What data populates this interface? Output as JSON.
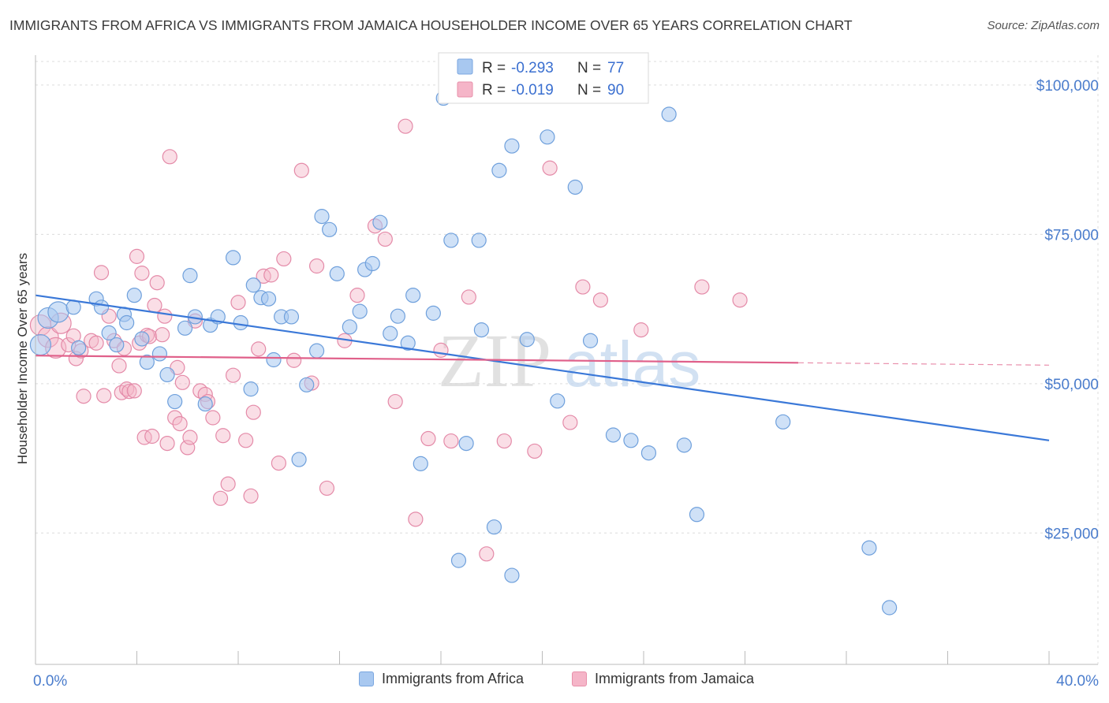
{
  "header": {
    "title": "IMMIGRANTS FROM AFRICA VS IMMIGRANTS FROM JAMAICA HOUSEHOLDER INCOME OVER 65 YEARS CORRELATION CHART",
    "source": "Source: ZipAtlas.com"
  },
  "watermark": {
    "zip": "ZIP",
    "atlas": "atlas"
  },
  "stats_legend": {
    "rows": [
      {
        "r_label": "R =",
        "r_value": "-0.293",
        "n_label": "N =",
        "n_value": "77",
        "color": "#a8c8f0"
      },
      {
        "r_label": "R =",
        "r_value": "-0.019",
        "n_label": "N =",
        "n_value": "90",
        "color": "#f5b5c8"
      }
    ]
  },
  "bottom_legend": [
    {
      "label": "Immigrants from Africa",
      "color": "#a8c8f0"
    },
    {
      "label": "Immigrants from Jamaica",
      "color": "#f5b5c8"
    }
  ],
  "chart_data": {
    "type": "scatter",
    "ylabel": "Householder Income Over 65 years",
    "x_tick_labels": [
      "0.0%",
      "40.0%"
    ],
    "y_tick_labels": [
      "$25,000",
      "$50,000",
      "$75,000",
      "$100,000"
    ],
    "y_ticks": [
      25000,
      50000,
      75000,
      100000
    ],
    "xlim": [
      0,
      40
    ],
    "ylim": [
      3000,
      105000
    ],
    "grid": true,
    "colors": {
      "africa": "#3a78d8",
      "jamaica": "#e0608a"
    },
    "series": [
      {
        "name": "Immigrants from Africa",
        "trend": {
          "x": [
            0,
            40
          ],
          "y": [
            64800,
            40500
          ],
          "dashed_from": null
        },
        "points": [
          [
            0.2,
            56500
          ],
          [
            0.5,
            61000
          ],
          [
            0.9,
            62000
          ],
          [
            1.5,
            62800
          ],
          [
            1.7,
            56000
          ],
          [
            2.4,
            64200
          ],
          [
            2.6,
            62800
          ],
          [
            2.9,
            58500
          ],
          [
            3.2,
            56500
          ],
          [
            3.5,
            61600
          ],
          [
            3.6,
            60200
          ],
          [
            3.9,
            64800
          ],
          [
            4.2,
            57500
          ],
          [
            4.4,
            53600
          ],
          [
            4.9,
            55000
          ],
          [
            5.2,
            51500
          ],
          [
            5.5,
            47000
          ],
          [
            5.9,
            59300
          ],
          [
            6.1,
            68100
          ],
          [
            6.3,
            61200
          ],
          [
            6.7,
            46600
          ],
          [
            6.9,
            59800
          ],
          [
            7.2,
            61200
          ],
          [
            7.8,
            71100
          ],
          [
            8.1,
            60200
          ],
          [
            8.5,
            49100
          ],
          [
            8.6,
            66500
          ],
          [
            8.9,
            64400
          ],
          [
            9.2,
            64200
          ],
          [
            9.4,
            54000
          ],
          [
            9.7,
            61200
          ],
          [
            10.1,
            61200
          ],
          [
            10.4,
            37300
          ],
          [
            10.7,
            49800
          ],
          [
            11.1,
            55500
          ],
          [
            11.3,
            78000
          ],
          [
            11.6,
            75800
          ],
          [
            11.9,
            68400
          ],
          [
            12.4,
            59500
          ],
          [
            12.8,
            62100
          ],
          [
            13.0,
            69100
          ],
          [
            13.3,
            70100
          ],
          [
            13.6,
            77000
          ],
          [
            14.0,
            58400
          ],
          [
            14.3,
            61300
          ],
          [
            14.7,
            56800
          ],
          [
            14.9,
            64800
          ],
          [
            15.2,
            36600
          ],
          [
            15.7,
            61800
          ],
          [
            16.1,
            97800
          ],
          [
            16.4,
            74000
          ],
          [
            16.7,
            20400
          ],
          [
            17.0,
            40000
          ],
          [
            17.5,
            74000
          ],
          [
            17.6,
            59000
          ],
          [
            18.1,
            26000
          ],
          [
            18.3,
            85700
          ],
          [
            18.8,
            17900
          ],
          [
            18.8,
            89800
          ],
          [
            19.4,
            57400
          ],
          [
            20.2,
            91300
          ],
          [
            20.6,
            47100
          ],
          [
            21.3,
            82900
          ],
          [
            21.9,
            57200
          ],
          [
            22.8,
            41400
          ],
          [
            23.5,
            40500
          ],
          [
            24.2,
            38400
          ],
          [
            25.0,
            95100
          ],
          [
            25.6,
            39700
          ],
          [
            26.1,
            28100
          ],
          [
            29.5,
            43600
          ],
          [
            32.9,
            22500
          ],
          [
            33.7,
            12500
          ]
        ]
      },
      {
        "name": "Immigrants from Jamaica",
        "trend": {
          "x": [
            0,
            30.1,
            40
          ],
          "y": [
            54700,
            53500,
            53100
          ],
          "dashed_from": 30.1
        },
        "points": [
          [
            0.2,
            59800
          ],
          [
            0.5,
            57800
          ],
          [
            0.8,
            56000
          ],
          [
            1.0,
            60100
          ],
          [
            1.3,
            56500
          ],
          [
            1.5,
            58000
          ],
          [
            1.6,
            54200
          ],
          [
            1.8,
            55500
          ],
          [
            1.9,
            47900
          ],
          [
            2.2,
            57200
          ],
          [
            2.4,
            56800
          ],
          [
            2.6,
            68600
          ],
          [
            2.7,
            48000
          ],
          [
            2.9,
            61300
          ],
          [
            3.1,
            57200
          ],
          [
            3.3,
            53000
          ],
          [
            3.4,
            48500
          ],
          [
            3.5,
            55900
          ],
          [
            3.6,
            49100
          ],
          [
            3.7,
            48700
          ],
          [
            3.9,
            48800
          ],
          [
            4.0,
            71300
          ],
          [
            4.1,
            56800
          ],
          [
            4.2,
            68500
          ],
          [
            4.3,
            41000
          ],
          [
            4.4,
            58100
          ],
          [
            4.5,
            57900
          ],
          [
            4.6,
            41200
          ],
          [
            4.7,
            63100
          ],
          [
            4.8,
            66900
          ],
          [
            5.0,
            58200
          ],
          [
            5.1,
            61300
          ],
          [
            5.2,
            40000
          ],
          [
            5.3,
            88000
          ],
          [
            5.5,
            44300
          ],
          [
            5.6,
            52700
          ],
          [
            5.7,
            43300
          ],
          [
            5.8,
            50200
          ],
          [
            6.0,
            39300
          ],
          [
            6.1,
            41000
          ],
          [
            6.3,
            60500
          ],
          [
            6.5,
            48800
          ],
          [
            6.7,
            48200
          ],
          [
            6.8,
            47000
          ],
          [
            7.0,
            44300
          ],
          [
            7.3,
            30800
          ],
          [
            7.4,
            41300
          ],
          [
            7.6,
            33200
          ],
          [
            7.8,
            51400
          ],
          [
            8.0,
            63600
          ],
          [
            8.3,
            40500
          ],
          [
            8.5,
            31200
          ],
          [
            8.6,
            45200
          ],
          [
            8.8,
            55800
          ],
          [
            9.0,
            68000
          ],
          [
            9.3,
            68200
          ],
          [
            9.6,
            36700
          ],
          [
            9.8,
            70900
          ],
          [
            10.2,
            53900
          ],
          [
            10.5,
            85700
          ],
          [
            10.9,
            50100
          ],
          [
            11.1,
            69700
          ],
          [
            11.5,
            32500
          ],
          [
            12.2,
            57200
          ],
          [
            12.7,
            64800
          ],
          [
            13.4,
            76400
          ],
          [
            13.8,
            74200
          ],
          [
            14.2,
            47000
          ],
          [
            14.6,
            93100
          ],
          [
            15.0,
            27300
          ],
          [
            15.5,
            40800
          ],
          [
            16.0,
            55600
          ],
          [
            16.4,
            40400
          ],
          [
            17.1,
            64500
          ],
          [
            17.8,
            21500
          ],
          [
            18.5,
            40400
          ],
          [
            19.7,
            38700
          ],
          [
            20.3,
            86100
          ],
          [
            21.1,
            43500
          ],
          [
            21.6,
            66200
          ],
          [
            22.3,
            64000
          ],
          [
            23.9,
            59000
          ],
          [
            26.3,
            66200
          ],
          [
            27.8,
            64000
          ]
        ]
      }
    ]
  }
}
